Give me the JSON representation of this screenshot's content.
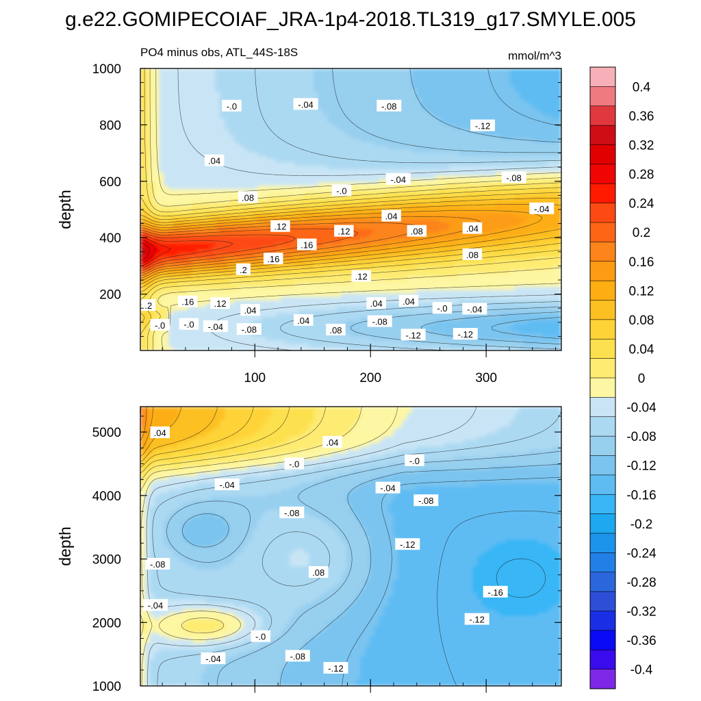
{
  "page": {
    "title": "g.e22.GOMIPECOIAF_JRA-1p4-2018.TL319_g17.SMYLE.005",
    "subtitle_left": "PO4 minus obs, ATL_44S-18S",
    "subtitle_right": "mmol/m^3"
  },
  "chart_data": [
    {
      "type": "heatmap",
      "panel": "upper",
      "title": "PO4 minus obs, ATL_44S-18S",
      "units": "mmol/m^3",
      "xlabel": "",
      "ylabel": "depth",
      "xlim": [
        1,
        365
      ],
      "ylim": [
        1000,
        0
      ],
      "xticks": [
        100,
        200,
        300
      ],
      "yticks": [
        200,
        400,
        600,
        800,
        1000
      ],
      "contour_labels": [
        {
          "x": 18,
          "y": 90,
          "text": "-.0"
        },
        {
          "x": 43,
          "y": 93,
          "text": "-.0"
        },
        {
          "x": 66,
          "y": 85,
          "text": "-.04"
        },
        {
          "x": 95,
          "y": 75,
          "text": "-.08"
        },
        {
          "x": 142,
          "y": 107,
          "text": ".04"
        },
        {
          "x": 170,
          "y": 73,
          "text": ".08"
        },
        {
          "x": 208,
          "y": 103,
          "text": "-.08"
        },
        {
          "x": 237,
          "y": 55,
          "text": "-.12"
        },
        {
          "x": 282,
          "y": 58,
          "text": "-.12"
        },
        {
          "x": 8,
          "y": 160,
          "text": ".2"
        },
        {
          "x": 42,
          "y": 173,
          "text": ".16"
        },
        {
          "x": 70,
          "y": 167,
          "text": ".12"
        },
        {
          "x": 96,
          "y": 143,
          "text": ".04"
        },
        {
          "x": 205,
          "y": 167,
          "text": ".04"
        },
        {
          "x": 233,
          "y": 175,
          "text": ".04"
        },
        {
          "x": 262,
          "y": 150,
          "text": "-.0"
        },
        {
          "x": 290,
          "y": 147,
          "text": "-.04"
        },
        {
          "x": 192,
          "y": 263,
          "text": ".12"
        },
        {
          "x": 90,
          "y": 287,
          "text": ".2"
        },
        {
          "x": 116,
          "y": 325,
          "text": ".16"
        },
        {
          "x": 145,
          "y": 375,
          "text": ".16"
        },
        {
          "x": 288,
          "y": 340,
          "text": ".08"
        },
        {
          "x": 122,
          "y": 440,
          "text": ".12"
        },
        {
          "x": 177,
          "y": 423,
          "text": ".12"
        },
        {
          "x": 240,
          "y": 423,
          "text": ".08"
        },
        {
          "x": 288,
          "y": 433,
          "text": ".04"
        },
        {
          "x": 218,
          "y": 477,
          "text": ".04"
        },
        {
          "x": 348,
          "y": 503,
          "text": "-.04"
        },
        {
          "x": 94,
          "y": 543,
          "text": ".08"
        },
        {
          "x": 175,
          "y": 567,
          "text": "-.0"
        },
        {
          "x": 224,
          "y": 607,
          "text": "-.04"
        },
        {
          "x": 324,
          "y": 613,
          "text": "-.08"
        },
        {
          "x": 65,
          "y": 673,
          "text": ".04"
        },
        {
          "x": 80,
          "y": 867,
          "text": "-.0"
        },
        {
          "x": 144,
          "y": 873,
          "text": "-.04"
        },
        {
          "x": 216,
          "y": 867,
          "text": "-.08"
        },
        {
          "x": 297,
          "y": 797,
          "text": "-.12"
        }
      ]
    },
    {
      "type": "heatmap",
      "panel": "lower",
      "xlabel": "",
      "ylabel": "depth",
      "xlim": [
        1,
        365
      ],
      "ylim": [
        5400,
        1000
      ],
      "xticks": [
        100,
        200,
        300
      ],
      "yticks": [
        1000,
        2000,
        3000,
        4000,
        5000
      ],
      "contour_labels": [
        {
          "x": 64,
          "y": 1430,
          "text": "-.04"
        },
        {
          "x": 137,
          "y": 1470,
          "text": "-.08"
        },
        {
          "x": 170,
          "y": 1280,
          "text": "-.12"
        },
        {
          "x": 105,
          "y": 1780,
          "text": "-.0"
        },
        {
          "x": 14,
          "y": 2270,
          "text": "-.04"
        },
        {
          "x": 292,
          "y": 2050,
          "text": "-.12"
        },
        {
          "x": 308,
          "y": 2480,
          "text": "-.16"
        },
        {
          "x": 16,
          "y": 2920,
          "text": "-.08"
        },
        {
          "x": 155,
          "y": 2790,
          "text": ".08"
        },
        {
          "x": 232,
          "y": 3230,
          "text": "-.12"
        },
        {
          "x": 132,
          "y": 3730,
          "text": "-.08"
        },
        {
          "x": 248,
          "y": 3920,
          "text": "-.08"
        },
        {
          "x": 76,
          "y": 4170,
          "text": "-.04"
        },
        {
          "x": 215,
          "y": 4120,
          "text": "-.04"
        },
        {
          "x": 134,
          "y": 4500,
          "text": "-.0"
        },
        {
          "x": 238,
          "y": 4550,
          "text": "-.0"
        },
        {
          "x": 167,
          "y": 4840,
          "text": ".04"
        },
        {
          "x": 18,
          "y": 4990,
          "text": ".04"
        }
      ]
    }
  ],
  "colorbar": {
    "labels": [
      "0.4",
      "0.36",
      "0.32",
      "0.28",
      "0.24",
      "0.2",
      "0.16",
      "0.12",
      "0.08",
      "0.04",
      "0",
      "-0.04",
      "-0.08",
      "-0.12",
      "-0.16",
      "-0.2",
      "-0.24",
      "-0.28",
      "-0.32",
      "-0.36",
      "-0.4"
    ],
    "colors": [
      "#f7b0b8",
      "#ef7a80",
      "#e0383e",
      "#cf0d14",
      "#e00000",
      "#f00505",
      "#ff1a00",
      "#fd4a12",
      "#fd6615",
      "#fd841b",
      "#fd9c14",
      "#fdae12",
      "#fcc022",
      "#fed338",
      "#fde04d",
      "#fdeb72",
      "#fdf6a2",
      "#c9e5f5",
      "#acd9f2",
      "#97cfef",
      "#7ac4ef",
      "#5ebcf3",
      "#38b6f5",
      "#1ea8f0",
      "#1c94ec",
      "#227fe6",
      "#2c66dc",
      "#2d4fd8",
      "#1a2ee6",
      "#0a0af5",
      "#3a0bec",
      "#7d28e6"
    ],
    "colors_high_to_low": true
  },
  "colors": {
    "background": "#ffffff",
    "frame": "#000000"
  }
}
